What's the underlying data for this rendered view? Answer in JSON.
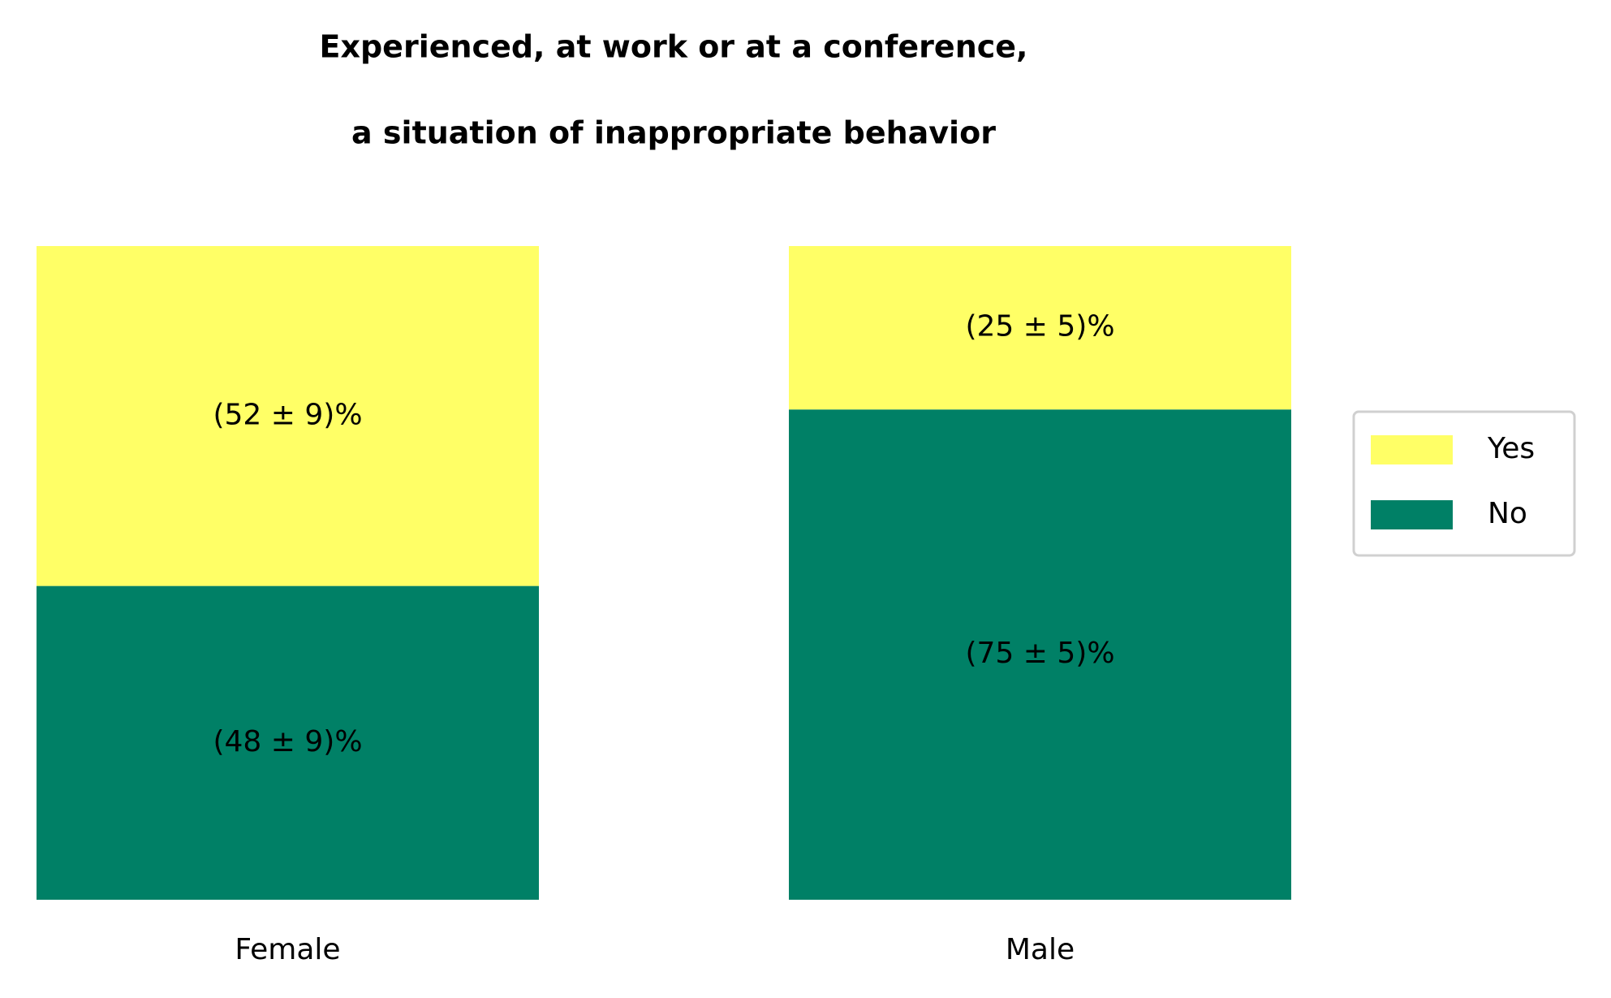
{
  "chart_data": {
    "type": "stacked-bar",
    "title": [
      "Experienced, at work or at a conference,",
      "a situation of inappropriate behavior"
    ],
    "categories": [
      "Female",
      "Male"
    ],
    "series": [
      {
        "name": "No",
        "color": "#008066",
        "values": [
          48,
          75
        ],
        "value_labels": [
          "(48 ± 9)%",
          "(75 ± 5)%"
        ]
      },
      {
        "name": "Yes",
        "color": "#ffff66",
        "values": [
          52,
          25
        ],
        "value_labels": [
          "(52 ± 9)%",
          "(25 ± 5)%"
        ]
      }
    ],
    "ylim": [
      0,
      100
    ],
    "legend": "right"
  }
}
